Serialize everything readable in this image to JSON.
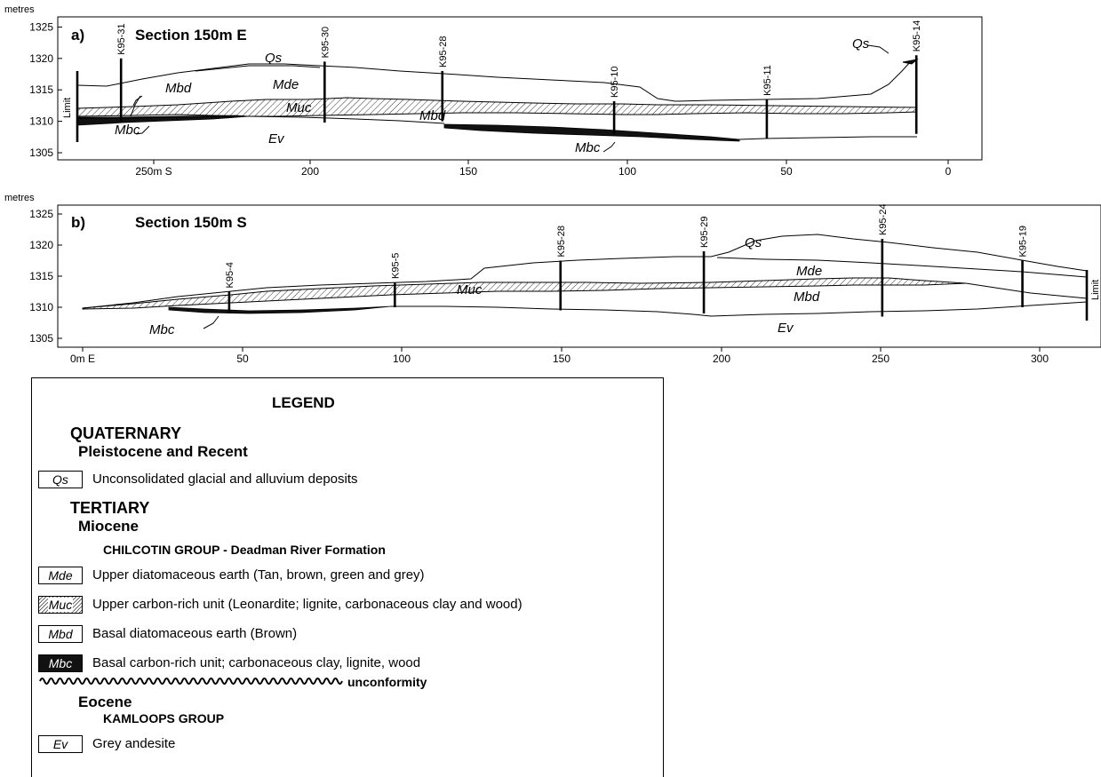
{
  "figure": {
    "panels": [
      {
        "id": "a",
        "panel_label": "a)",
        "title": "Section 150m E",
        "y_unit": "metres",
        "y_ticks": [
          "1325",
          "1320",
          "1315",
          "1310",
          "1305"
        ],
        "x_ticks": [
          "250m S",
          "200",
          "150",
          "100",
          "50",
          "0"
        ],
        "x_reversed": true,
        "limit_label": "Limit",
        "boreholes": [
          {
            "name": "K95-31",
            "x": 260,
            "top": 1320,
            "bottom": 1310
          },
          {
            "name": "K95-30",
            "x": 196,
            "top": 1319.5,
            "bottom": 1309.8
          },
          {
            "name": "K95-28",
            "x": 159,
            "top": 1318,
            "bottom": 1310
          },
          {
            "name": "K95-10",
            "x": 105,
            "top": 1313.2,
            "bottom": 1308
          },
          {
            "name": "K95-11",
            "x": 57,
            "top": 1313.5,
            "bottom": 1307.3
          },
          {
            "name": "K95-14",
            "x": 10,
            "top": 1320.5,
            "bottom": 1308
          }
        ],
        "unit_labels": [
          "Qs",
          "Mde",
          "Mbd",
          "Muc",
          "Mbc",
          "Ev",
          "Mbd",
          "Mbc",
          "Qs"
        ]
      },
      {
        "id": "b",
        "panel_label": "b)",
        "title": "Section 150m S",
        "y_unit": "metres",
        "y_ticks": [
          "1325",
          "1320",
          "1315",
          "1310",
          "1305"
        ],
        "x_ticks": [
          "0m E",
          "50",
          "100",
          "150",
          "200",
          "250",
          "300"
        ],
        "x_reversed": false,
        "limit_label": "Limit",
        "boreholes": [
          {
            "name": "K95-4",
            "x": 46,
            "top": 1312.5,
            "bottom": 1309
          },
          {
            "name": "K95-5",
            "x": 98,
            "top": 1314,
            "bottom": 1310
          },
          {
            "name": "K95-28",
            "x": 150,
            "top": 1317.5,
            "bottom": 1309.5
          },
          {
            "name": "K95-29",
            "x": 195,
            "top": 1319,
            "bottom": 1309
          },
          {
            "name": "K95-24",
            "x": 251,
            "top": 1321,
            "bottom": 1308.5
          },
          {
            "name": "K95-19",
            "x": 295,
            "top": 1317.5,
            "bottom": 1310
          }
        ],
        "unit_labels": [
          "Qs",
          "Mde",
          "Mbd",
          "Muc",
          "Mbc",
          "Ev"
        ]
      }
    ]
  },
  "legend": {
    "title": "LEGEND",
    "quaternary": "QUATERNARY",
    "pleistocene": "Pleistocene and Recent",
    "tertiary": "TERTIARY",
    "miocene": "Miocene",
    "chilcotin": "CHILCOTIN GROUP - Deadman River Formation",
    "unconformity": "unconformity",
    "eocene": "Eocene",
    "kamloops": "KAMLOOPS GROUP",
    "units": [
      {
        "code": "Qs",
        "desc": "Unconsolidated glacial and alluvium deposits",
        "fill": "white"
      },
      {
        "code": "Mde",
        "desc": "Upper diatomaceous earth (Tan, brown, green and grey)",
        "fill": "white"
      },
      {
        "code": "Muc",
        "desc": "Upper carbon-rich unit (Leonardite;  lignite, carbonaceous clay and wood)",
        "fill": "hatch"
      },
      {
        "code": "Mbd",
        "desc": "Basal diatomaceous earth (Brown)",
        "fill": "white"
      },
      {
        "code": "Mbc",
        "desc": "Basal carbon-rich unit; carbonaceous clay, lignite, wood",
        "fill": "black"
      },
      {
        "code": "Ev",
        "desc": "Grey andesite",
        "fill": "white"
      }
    ]
  }
}
